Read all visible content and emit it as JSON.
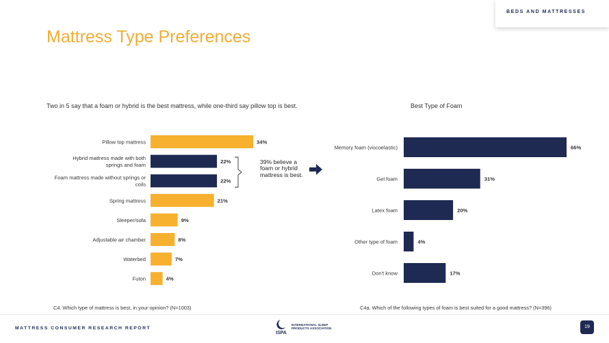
{
  "header": {
    "section_tab": "BEDS AND MATTRESSES",
    "title": "Mattress Type Preferences"
  },
  "left_chart": {
    "subtitle": "Two in 5 say that a foam or hybrid is the best mattress, while one-third say pillow top is best.",
    "footnote": "C4. Which type of mattress is best, in your opinion? (N=1003)",
    "callout": "39% believe a foam or hybrid mattress is best."
  },
  "right_chart": {
    "subtitle": "Best Type of Foam",
    "footnote": "C4a. Which of the following types of foam is best suited for a good mattress? (N=396)"
  },
  "footer": {
    "report_name": "MATTRESS CONSUMER RESEARCH REPORT",
    "logo_abbr": "ISPA",
    "logo_name": "INTERNATIONAL SLEEP PRODUCTS ASSOCIATION",
    "page_number": "19"
  },
  "colors": {
    "title": "#f2ad33",
    "orange_bar": "#f7b12f",
    "navy_bar": "#1e2a52"
  },
  "icons": {
    "callout_bracket": "bracket-icon",
    "callout_arrow": "right-arrow-icon",
    "logo": "moon-logo-icon"
  },
  "chart_data": [
    {
      "type": "bar",
      "orientation": "horizontal",
      "categories": [
        "Pillow top mattress",
        "Hybrid mattress made with both springs and foam",
        "Foam mattress made without springs or coils",
        "Spring mattress",
        "Sleeper/sofa",
        "Adjustable air chamber",
        "Waterbed",
        "Futon"
      ],
      "values": [
        34,
        22,
        22,
        21,
        9,
        8,
        7,
        4
      ],
      "value_labels": [
        "34%",
        "22%",
        "22%",
        "21%",
        "9%",
        "8%",
        "7%",
        "4%"
      ],
      "highlighted": [
        false,
        true,
        true,
        false,
        false,
        false,
        false,
        false
      ],
      "unit": "%"
    },
    {
      "type": "bar",
      "orientation": "horizontal",
      "categories": [
        "Memory foam (viscoelastic)",
        "Gel foam",
        "Latex foam",
        "Other type of foam",
        "Don't know"
      ],
      "values": [
        66,
        31,
        20,
        4,
        17
      ],
      "value_labels": [
        "66%",
        "31%",
        "20%",
        "4%",
        "17%"
      ],
      "unit": "%"
    }
  ]
}
